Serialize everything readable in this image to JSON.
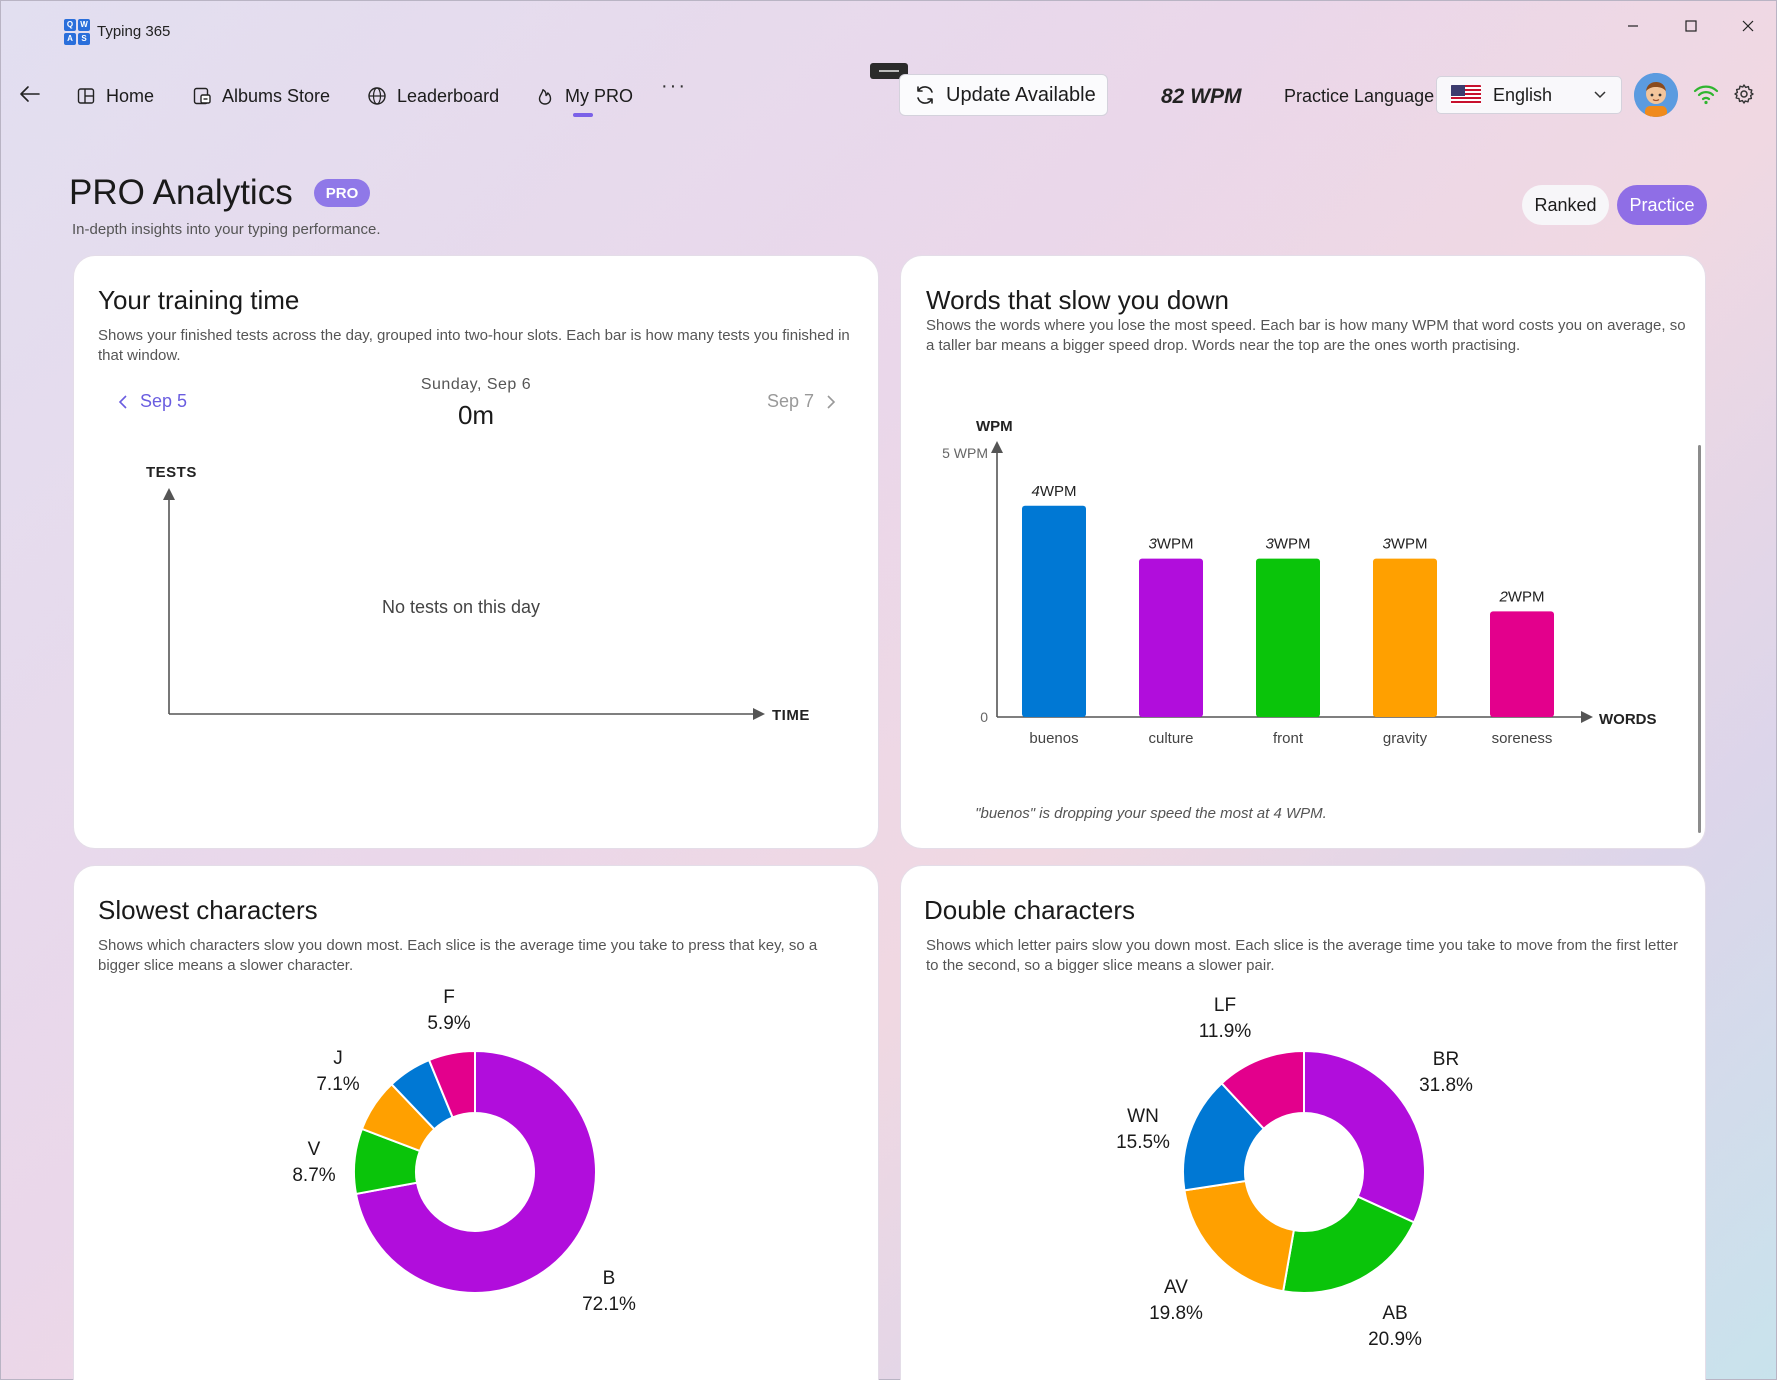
{
  "app": {
    "title": "Typing 365",
    "logo_letters": [
      "Q",
      "W",
      "A",
      "S"
    ]
  },
  "nav": {
    "items": [
      {
        "label": "Home",
        "icon": "home-icon"
      },
      {
        "label": "Albums Store",
        "icon": "albums-icon"
      },
      {
        "label": "Leaderboard",
        "icon": "globe-icon"
      },
      {
        "label": "My PRO",
        "icon": "flame-icon",
        "active": true
      }
    ],
    "more": "···",
    "update_label": "Update Available",
    "wpm": "82 WPM",
    "practice_language_label": "Practice Language",
    "language": "English"
  },
  "header": {
    "title": "PRO Analytics",
    "badge": "PRO",
    "subtitle": "In-depth insights into your typing performance.",
    "modes": {
      "ranked": "Ranked",
      "practice": "Practice",
      "active": "Practice"
    }
  },
  "training": {
    "title": "Your training time",
    "description": "Shows your finished tests across the day, grouped into two-hour slots. Each bar is how many tests you finished in that window.",
    "prev_date": "Sep 5",
    "next_date": "Sep 7",
    "current_date_label": "Sunday, Sep 6",
    "current_value": "0m",
    "empty_message": "No tests on this day",
    "y_axis": "TESTS",
    "x_axis": "TIME"
  },
  "slow_words": {
    "title": "Words that slow you down",
    "description": "Shows the words where you lose the most speed. Each bar is how many WPM that word costs you on average, so a taller bar means a bigger speed drop. Words near the top are the ones worth practising.",
    "insight": "\"buenos\" is dropping your speed the most at 4 WPM."
  },
  "slow_chars": {
    "title": "Slowest characters",
    "description": "Shows which characters slow you down most. Each slice is the average time you take to press that key, so a bigger slice means a slower character."
  },
  "double_chars": {
    "title": "Double characters",
    "description": "Shows which letter pairs slow you down most. Each slice is the average time you take to move from the first letter to the second, so a bigger slice means a slower pair."
  },
  "chart_data": [
    {
      "type": "bar",
      "title": "Words that slow you down",
      "ylabel": "WPM",
      "xlabel": "WORDS",
      "ylim": [
        0,
        5
      ],
      "yticks": [
        "0",
        "5 WPM"
      ],
      "categories": [
        "buenos",
        "culture",
        "front",
        "gravity",
        "soreness"
      ],
      "values": [
        4,
        3,
        3,
        3,
        2
      ],
      "value_unit": "WPM",
      "colors": [
        "#0078d4",
        "#b10ddc",
        "#0ac40a",
        "#ffa000",
        "#e3008c"
      ]
    },
    {
      "type": "pie",
      "title": "Slowest characters",
      "labels": [
        "B",
        "V",
        "J",
        "F",
        ""
      ],
      "values": [
        72.1,
        8.7,
        7.1,
        5.9,
        6.2
      ],
      "value_labels": [
        "72.1%",
        "8.7%",
        "7.1%",
        "5.9%",
        ""
      ],
      "colors": [
        "#b10ddc",
        "#0ac40a",
        "#ffa000",
        "#0078d4",
        "#e3008c"
      ]
    },
    {
      "type": "pie",
      "title": "Double characters",
      "labels": [
        "BR",
        "AB",
        "AV",
        "WN",
        "LF"
      ],
      "values": [
        31.8,
        20.9,
        19.8,
        15.5,
        11.9
      ],
      "value_labels": [
        "31.8%",
        "20.9%",
        "19.8%",
        "15.5%",
        "11.9%"
      ],
      "colors": [
        "#b10ddc",
        "#0ac40a",
        "#ffa000",
        "#0078d4",
        "#e3008c"
      ]
    }
  ]
}
